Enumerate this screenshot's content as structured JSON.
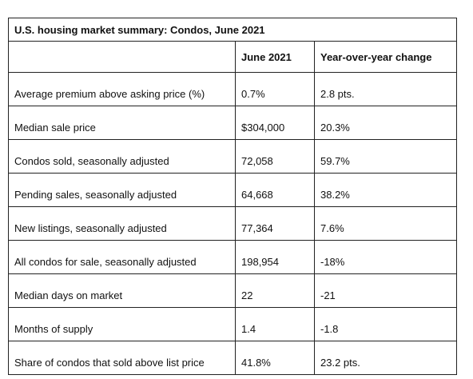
{
  "table": {
    "title": "U.S. housing market summary: Condos, June 2021",
    "header": [
      "June 2021",
      "Year-over-year change"
    ],
    "rows": [
      [
        "Average premium above asking price (%)",
        "0.7%",
        "2.8 pts."
      ],
      [
        "Median sale price",
        "$304,000",
        "20.3%"
      ],
      [
        "Condos sold, seasonally adjusted",
        "72,058",
        "59.7%"
      ],
      [
        "Pending sales, seasonally adjusted",
        "64,668",
        "38.2%"
      ],
      [
        "New listings, seasonally adjusted",
        "77,364",
        "7.6%"
      ],
      [
        "All condos for sale, seasonally adjusted",
        "198,954",
        "-18%"
      ],
      [
        "Median days on market",
        "22",
        "-21"
      ],
      [
        "Months of supply",
        "1.4",
        "-1.8"
      ],
      [
        "Share of condos that sold above list price",
        "41.8%",
        "23.2 pts."
      ]
    ]
  }
}
